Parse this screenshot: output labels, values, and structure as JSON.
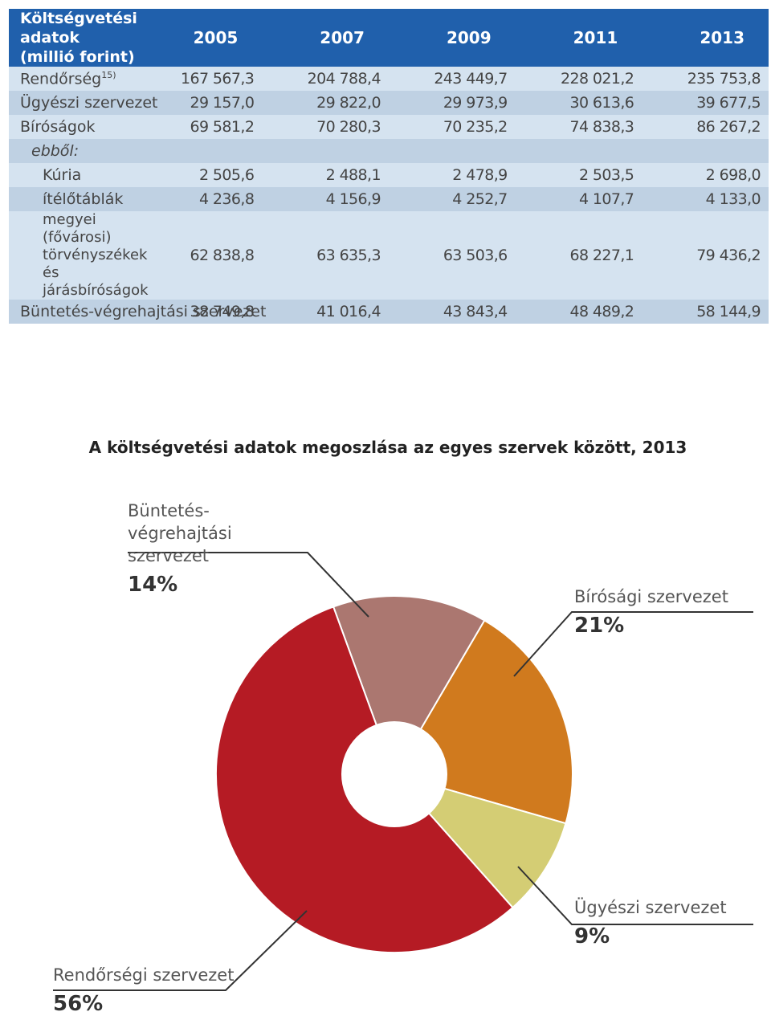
{
  "table": {
    "header_label": [
      "Költségvetési adatok",
      "(millió forint)"
    ],
    "years": [
      "2005",
      "2007",
      "2009",
      "2011",
      "2013"
    ],
    "rows": [
      {
        "label": "Rendőrség",
        "sup": "15)",
        "values": [
          "167 567,3",
          "204 788,4",
          "243 449,7",
          "228 021,2",
          "235 753,8"
        ]
      },
      {
        "label": "Ügyészi szervezet",
        "values": [
          "29 157,0",
          "29 822,0",
          "29 973,9",
          "30 613,6",
          "39 677,5"
        ]
      },
      {
        "label": "Bíróságok",
        "values": [
          "69 581,2",
          "70 280,3",
          "70 235,2",
          "74 838,3",
          "86 267,2"
        ]
      },
      {
        "label": "ebből:",
        "values": [
          "",
          "",
          "",
          "",
          ""
        ]
      },
      {
        "label": "Kúria",
        "values": [
          "2 505,6",
          "2 488,1",
          "2 478,9",
          "2 503,5",
          "2 698,0"
        ]
      },
      {
        "label": "ítélőtáblák",
        "values": [
          "4 236,8",
          "4 156,9",
          "4 252,7",
          "4 107,7",
          "4 133,0"
        ]
      },
      {
        "label": "megyei (fővárosi) törvényszékek és járásbíróságok",
        "values": [
          "62 838,8",
          "63 635,3",
          "63 503,6",
          "68 227,1",
          "79 436,2"
        ]
      },
      {
        "label": "Büntetés-végrehajtási szervezet",
        "values": [
          "38 749,8",
          "41 016,4",
          "43 843,4",
          "48 489,2",
          "58 144,9"
        ]
      }
    ]
  },
  "chart_data": {
    "type": "pie",
    "title": "A költségvetési adatok megoszlása az egyes szervek között, 2013",
    "slices": [
      {
        "name": "Büntetés-végrehajtási szervezet",
        "value": 14,
        "label": "14%",
        "color": "#ab7770"
      },
      {
        "name": "Bírósági szervezet",
        "value": 21,
        "label": "21%",
        "color": "#d07a1e"
      },
      {
        "name": "Ügyészi szervezet",
        "value": 9,
        "label": "9%",
        "color": "#d4cd74"
      },
      {
        "name": "Rendőrségi szervezet",
        "value": 56,
        "label": "56%",
        "color": "#b51b24"
      }
    ],
    "start_slice_edge_deg": -20,
    "donut_hole": true,
    "legend": "callouts"
  }
}
